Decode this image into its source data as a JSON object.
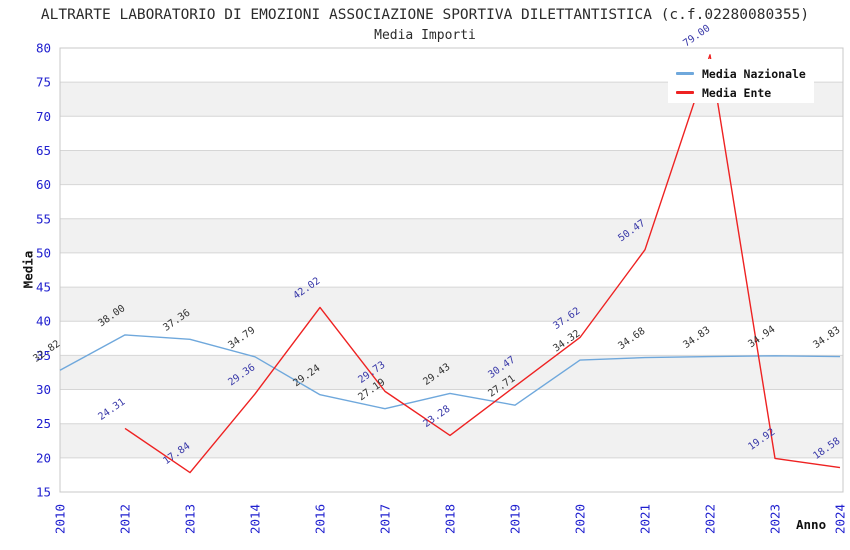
{
  "header": {
    "title": "ALTRARTE LABORATORIO DI EMOZIONI ASSOCIAZIONE SPORTIVA DILETTANTISTICA (c.f.02280080355)",
    "subtitle": "Media Importi"
  },
  "colors": {
    "band": "#f1f1f1",
    "grid": "#d6d6d6",
    "border": "#c8c8c8",
    "tick_label": "#2020cf",
    "nazionale_line": "#6fa8dc",
    "ente_line": "#ee2222",
    "nazionale_label": "#333333",
    "ente_label": "#3838a8"
  },
  "chart_data": {
    "type": "line",
    "title": "Media Importi",
    "xlabel": "Anno",
    "ylabel": "Media",
    "ylim": [
      15,
      80
    ],
    "y_ticks": [
      15,
      20,
      25,
      30,
      35,
      40,
      45,
      50,
      55,
      60,
      65,
      70,
      75,
      80
    ],
    "grid": "horizontal gridlines with alternating gray bands",
    "legend_position": "top-right inside plot",
    "categories": [
      "2010",
      "2012",
      "2013",
      "2014",
      "2016",
      "2017",
      "2018",
      "2019",
      "2020",
      "2021",
      "2022",
      "2023",
      "2024"
    ],
    "series": [
      {
        "name": "Media Nazionale",
        "color": "#6fa8dc",
        "label_color": "#333333",
        "start_index": 0,
        "values": [
          32.82,
          38.0,
          37.36,
          34.79,
          29.24,
          27.19,
          29.43,
          27.71,
          34.32,
          34.68,
          34.83,
          34.94,
          34.83
        ]
      },
      {
        "name": "Media Ente",
        "color": "#ee2222",
        "label_color": "#3838a8",
        "start_index": 1,
        "values": [
          24.31,
          17.84,
          29.36,
          42.02,
          29.73,
          23.28,
          30.47,
          37.62,
          50.47,
          79.0,
          19.92,
          18.58
        ]
      }
    ]
  }
}
